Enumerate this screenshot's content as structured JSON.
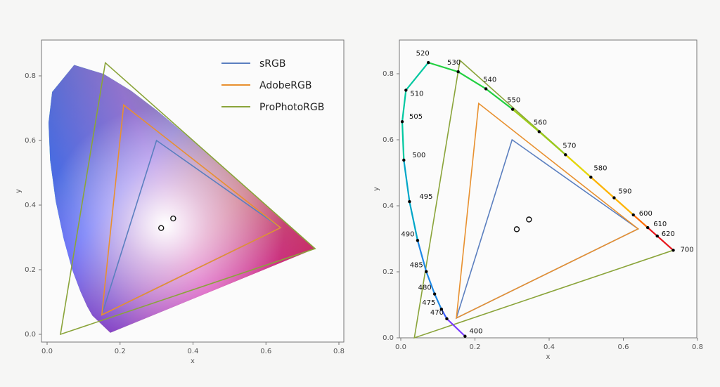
{
  "chart_data": [
    {
      "type": "scatter",
      "title": "",
      "xlabel": "x",
      "ylabel": "y",
      "xlim": [
        0.0,
        0.8
      ],
      "ylim": [
        0.0,
        0.9
      ],
      "xticks": [
        "0.0",
        "0.2",
        "0.4",
        "0.6",
        "0.8"
      ],
      "yticks": [
        "0.0",
        "0.2",
        "0.4",
        "0.6",
        "0.8"
      ],
      "filled_locus": true,
      "grid": false,
      "legend_position": "top-right",
      "white_points": [
        [
          0.3127,
          0.329
        ],
        [
          0.3457,
          0.3585
        ]
      ],
      "series": [
        {
          "name": "sRGB",
          "color": "#5b7fbf",
          "points": [
            [
              0.64,
              0.33
            ],
            [
              0.3,
              0.6
            ],
            [
              0.15,
              0.06
            ]
          ]
        },
        {
          "name": "AdobeRGB",
          "color": "#e8902f",
          "points": [
            [
              0.64,
              0.33
            ],
            [
              0.21,
              0.71
            ],
            [
              0.15,
              0.06
            ]
          ]
        },
        {
          "name": "ProPhotoRGB",
          "color": "#8aa43a",
          "points": [
            [
              0.7347,
              0.2653
            ],
            [
              0.1596,
              0.8404
            ],
            [
              0.0366,
              0.0001
            ]
          ]
        }
      ]
    },
    {
      "type": "line",
      "title": "",
      "xlabel": "x",
      "ylabel": "y",
      "xlim": [
        0.0,
        0.8
      ],
      "ylim": [
        0.0,
        0.9
      ],
      "xticks": [
        "0.0",
        "0.2",
        "0.4",
        "0.6",
        "0.8"
      ],
      "yticks": [
        "0.0",
        "0.2",
        "0.4",
        "0.6",
        "0.8"
      ],
      "grid": false,
      "white_points": [
        [
          0.3127,
          0.329
        ],
        [
          0.3457,
          0.3585
        ]
      ],
      "spectral_locus": [
        {
          "label": "400",
          "x": 0.1733,
          "y": 0.0048
        },
        {
          "label": "470",
          "x": 0.1241,
          "y": 0.0578
        },
        {
          "label": "475",
          "x": 0.1096,
          "y": 0.0868
        },
        {
          "label": "480",
          "x": 0.0913,
          "y": 0.1327
        },
        {
          "label": "485",
          "x": 0.0687,
          "y": 0.2007
        },
        {
          "label": "490",
          "x": 0.0454,
          "y": 0.295
        },
        {
          "label": "495",
          "x": 0.0235,
          "y": 0.4127
        },
        {
          "label": "500",
          "x": 0.0082,
          "y": 0.5384
        },
        {
          "label": "505",
          "x": 0.0039,
          "y": 0.6548
        },
        {
          "label": "510",
          "x": 0.0139,
          "y": 0.7502
        },
        {
          "label": "520",
          "x": 0.0743,
          "y": 0.8338
        },
        {
          "label": "530",
          "x": 0.1547,
          "y": 0.8059
        },
        {
          "label": "540",
          "x": 0.2296,
          "y": 0.7543
        },
        {
          "label": "550",
          "x": 0.3016,
          "y": 0.6923
        },
        {
          "label": "560",
          "x": 0.3731,
          "y": 0.6245
        },
        {
          "label": "570",
          "x": 0.4441,
          "y": 0.5547
        },
        {
          "label": "580",
          "x": 0.5125,
          "y": 0.4866
        },
        {
          "label": "590",
          "x": 0.5752,
          "y": 0.4242
        },
        {
          "label": "600",
          "x": 0.627,
          "y": 0.3725
        },
        {
          "label": "610",
          "x": 0.6658,
          "y": 0.334
        },
        {
          "label": "620",
          "x": 0.6915,
          "y": 0.3083
        },
        {
          "label": "700",
          "x": 0.7347,
          "y": 0.2653
        }
      ],
      "series": [
        {
          "color": "#5b7fbf",
          "points": [
            [
              0.64,
              0.33
            ],
            [
              0.3,
              0.6
            ],
            [
              0.15,
              0.06
            ]
          ]
        },
        {
          "color": "#e8902f",
          "points": [
            [
              0.64,
              0.33
            ],
            [
              0.21,
              0.71
            ],
            [
              0.15,
              0.06
            ]
          ]
        },
        {
          "color": "#8aa43a",
          "points": [
            [
              0.7347,
              0.2653
            ],
            [
              0.1596,
              0.8404
            ],
            [
              0.0366,
              0.0001
            ]
          ]
        }
      ]
    }
  ]
}
